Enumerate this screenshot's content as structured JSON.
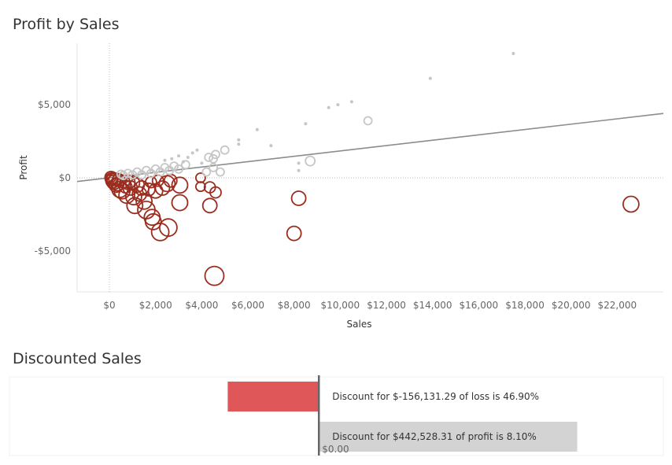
{
  "chart_data": [
    {
      "type": "scatter",
      "title": "Profit by Sales",
      "xlabel": "Sales",
      "ylabel": "Profit",
      "xlim": [
        -1400,
        24000
      ],
      "ylim": [
        -7800,
        9200
      ],
      "x_ticks": [
        "$0",
        "$2,000",
        "$4,000",
        "$6,000",
        "$8,000",
        "$10,000",
        "$12,000",
        "$14,000",
        "$16,000",
        "$18,000",
        "$20,000",
        "$22,000"
      ],
      "x_tick_values": [
        0,
        2000,
        4000,
        6000,
        8000,
        10000,
        12000,
        14000,
        16000,
        18000,
        20000,
        22000
      ],
      "y_ticks": [
        "$5,000",
        "$0",
        "-$5,000"
      ],
      "y_tick_values": [
        5000,
        0,
        -5000
      ],
      "grid": false,
      "trend_line": {
        "x": [
          -1400,
          24000
        ],
        "y": [
          -250,
          4400
        ]
      },
      "colors": {
        "profit": "#c6c6c6",
        "loss": "#9b2d1f",
        "trend": "#8c8c8c"
      },
      "series": [
        {
          "role": "loss",
          "points": [
            [
              22600,
              -1800,
              10
            ],
            [
              8200,
              -1400,
              9
            ],
            [
              8000,
              -3800,
              9
            ],
            [
              4550,
              -6700,
              12
            ],
            [
              4350,
              -1900,
              9
            ],
            [
              4600,
              -1000,
              7
            ],
            [
              4350,
              -650,
              7
            ],
            [
              3950,
              -600,
              6
            ],
            [
              3950,
              0,
              6
            ],
            [
              3050,
              -1700,
              10
            ],
            [
              3050,
              -500,
              10
            ],
            [
              2550,
              -3400,
              11
            ],
            [
              2200,
              -3700,
              11
            ],
            [
              1900,
              -3000,
              10
            ],
            [
              1850,
              -2700,
              10
            ],
            [
              1600,
              -2200,
              11
            ],
            [
              1500,
              -1600,
              10
            ],
            [
              1100,
              -1900,
              10
            ],
            [
              1050,
              -1300,
              10
            ],
            [
              750,
              -1200,
              10
            ],
            [
              550,
              -900,
              10
            ],
            [
              450,
              -800,
              10
            ],
            [
              300,
              -500,
              9
            ],
            [
              200,
              -300,
              9
            ],
            [
              150,
              -200,
              9
            ],
            [
              100,
              -100,
              8
            ],
            [
              2500,
              -400,
              10
            ],
            [
              2650,
              -200,
              8
            ],
            [
              2300,
              -700,
              9
            ],
            [
              2000,
              -900,
              9
            ],
            [
              1700,
              -800,
              8
            ],
            [
              1400,
              -700,
              9
            ],
            [
              1200,
              -500,
              9
            ],
            [
              1000,
              -350,
              9
            ],
            [
              800,
              -300,
              9
            ],
            [
              600,
              -250,
              8
            ],
            [
              400,
              -150,
              8
            ],
            [
              250,
              -100,
              8
            ],
            [
              80,
              0,
              8
            ],
            [
              50,
              50,
              7
            ],
            [
              120,
              -50,
              7
            ],
            [
              1800,
              -300,
              7
            ],
            [
              2100,
              -200,
              7
            ],
            [
              700,
              -600,
              8
            ],
            [
              350,
              -450,
              8
            ],
            [
              1300,
              -1100,
              9
            ],
            [
              900,
              -700,
              9
            ]
          ]
        },
        {
          "role": "profit",
          "points": [
            [
              17500,
              8500,
              2
            ],
            [
              13900,
              6800,
              2
            ],
            [
              10500,
              5200,
              2
            ],
            [
              9900,
              5000,
              2
            ],
            [
              9500,
              4800,
              2
            ],
            [
              11200,
              3900,
              5
            ],
            [
              8500,
              3700,
              2
            ],
            [
              8700,
              1150,
              6
            ],
            [
              8200,
              500,
              2
            ],
            [
              8200,
              1000,
              2
            ],
            [
              7000,
              2200,
              2
            ],
            [
              6400,
              3300,
              2
            ],
            [
              5600,
              2600,
              2
            ],
            [
              5600,
              2300,
              2
            ],
            [
              5000,
              1900,
              5
            ],
            [
              4600,
              1600,
              5
            ],
            [
              4500,
              1300,
              5
            ],
            [
              4300,
              1400,
              5
            ],
            [
              4800,
              400,
              5
            ],
            [
              4500,
              700,
              5
            ],
            [
              4200,
              400,
              5
            ],
            [
              4000,
              1000,
              2
            ],
            [
              3800,
              1900,
              2
            ],
            [
              3600,
              1700,
              2
            ],
            [
              3400,
              1400,
              2
            ],
            [
              3200,
              1100,
              2
            ],
            [
              3300,
              900,
              5
            ],
            [
              3000,
              600,
              5
            ],
            [
              2800,
              800,
              5
            ],
            [
              2600,
              500,
              5
            ],
            [
              2400,
              700,
              5
            ],
            [
              2200,
              400,
              5
            ],
            [
              2000,
              600,
              5
            ],
            [
              1800,
              300,
              5
            ],
            [
              1600,
              500,
              5
            ],
            [
              1400,
              200,
              5
            ],
            [
              1200,
              400,
              5
            ],
            [
              1000,
              200,
              5
            ],
            [
              800,
              300,
              5
            ],
            [
              600,
              150,
              5
            ],
            [
              500,
              250,
              5
            ],
            [
              3000,
              1500,
              2
            ],
            [
              2700,
              1300,
              2
            ],
            [
              2400,
              1200,
              2
            ]
          ]
        }
      ]
    },
    {
      "type": "bar",
      "title": "Discounted Sales",
      "zero_label": "$0.00",
      "xlim": [
        -530000,
        590000
      ],
      "colors": {
        "loss": "#e05759",
        "profit": "#d3d3d3",
        "zero": "#666666"
      },
      "bars": [
        {
          "value": -156131.29,
          "label": "Discount for $-156,131.29 of loss is 46.90%",
          "role": "loss"
        },
        {
          "value": 442528.31,
          "label": "Discount for $442,528.31 of profit is 8.10%",
          "role": "profit"
        }
      ]
    }
  ]
}
